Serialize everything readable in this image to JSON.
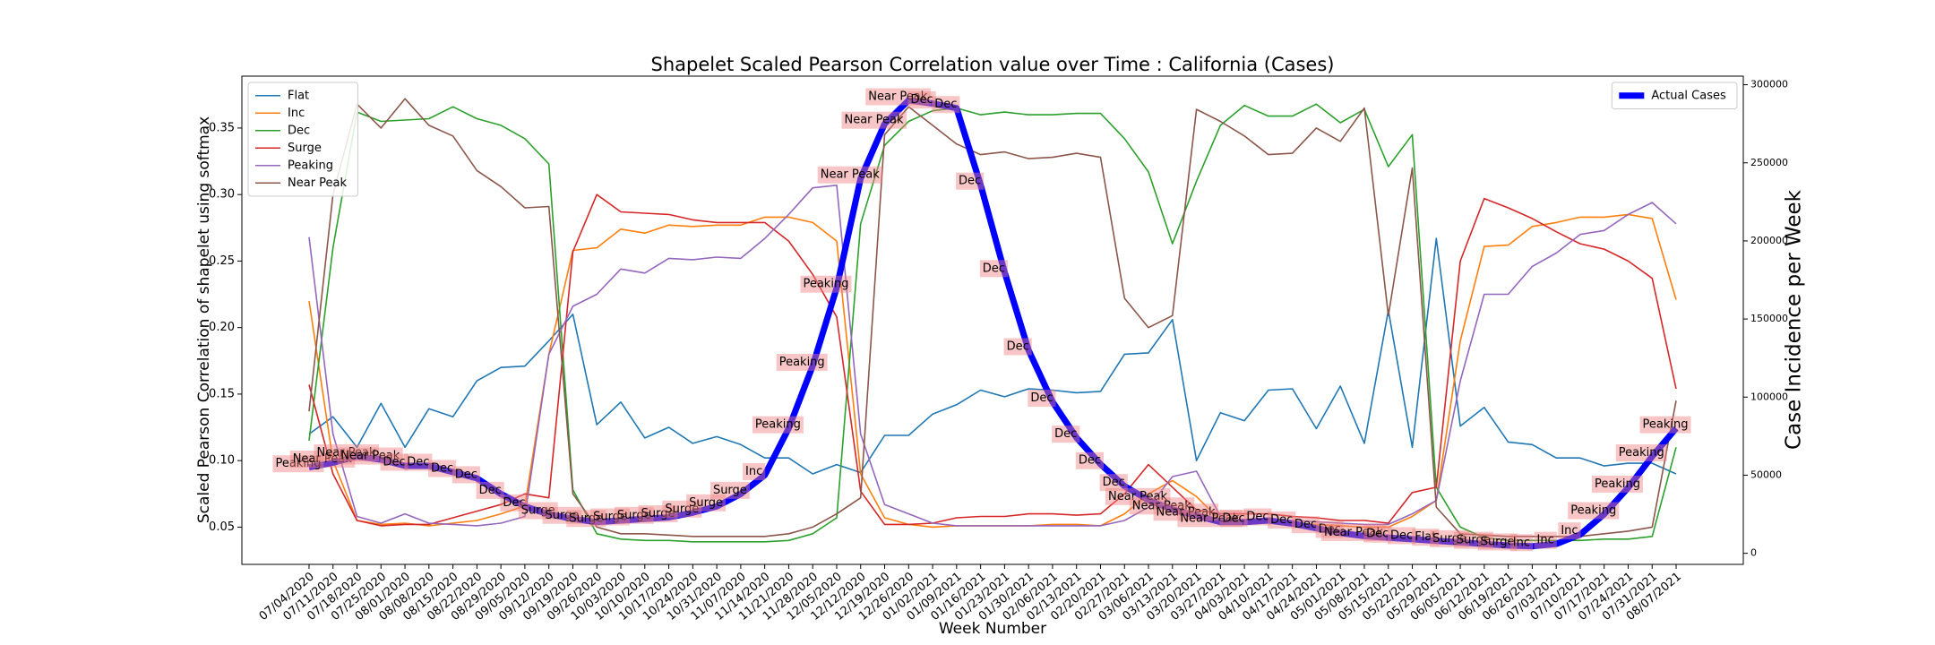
{
  "chart_data": {
    "type": "line",
    "title": "Shapelet Scaled Pearson Correlation value over Time : California (Cases)",
    "xlabel": "Week Number",
    "ylabel": "Scaled Pearson Correlation of shapelet using softmax",
    "y2label": "Case Incidence per Week",
    "categories": [
      "07/04/2020",
      "07/11/2020",
      "07/18/2020",
      "07/25/2020",
      "08/01/2020",
      "08/08/2020",
      "08/15/2020",
      "08/22/2020",
      "08/29/2020",
      "09/05/2020",
      "09/12/2020",
      "09/19/2020",
      "09/26/2020",
      "10/03/2020",
      "10/10/2020",
      "10/17/2020",
      "10/24/2020",
      "10/31/2020",
      "11/07/2020",
      "11/14/2020",
      "11/21/2020",
      "11/28/2020",
      "12/05/2020",
      "12/12/2020",
      "12/19/2020",
      "12/26/2020",
      "01/02/2021",
      "01/09/2021",
      "01/16/2021",
      "01/23/2021",
      "01/30/2021",
      "02/06/2021",
      "02/13/2021",
      "02/20/2021",
      "02/27/2021",
      "03/06/2021",
      "03/13/2021",
      "03/20/2021",
      "03/27/2021",
      "04/03/2021",
      "04/10/2021",
      "04/17/2021",
      "04/24/2021",
      "05/01/2021",
      "05/08/2021",
      "05/15/2021",
      "05/22/2021",
      "05/29/2021",
      "06/05/2021",
      "06/12/2021",
      "06/19/2021",
      "06/26/2021",
      "07/03/2021",
      "07/10/2021",
      "07/17/2021",
      "07/24/2021",
      "07/31/2021",
      "08/07/2021"
    ],
    "series": [
      {
        "name": "Flat",
        "color": "#1f77b4",
        "values": [
          0.12,
          0.133,
          0.11,
          0.143,
          0.11,
          0.139,
          0.133,
          0.16,
          0.17,
          0.171,
          0.19,
          0.21,
          0.127,
          0.144,
          0.117,
          0.125,
          0.113,
          0.118,
          0.112,
          0.102,
          0.102,
          0.09,
          0.097,
          0.091,
          0.119,
          0.119,
          0.135,
          0.142,
          0.153,
          0.148,
          0.154,
          0.153,
          0.151,
          0.152,
          0.18,
          0.181,
          0.206,
          0.1,
          0.136,
          0.13,
          0.153,
          0.154,
          0.124,
          0.156,
          0.113,
          0.213,
          0.11,
          0.267,
          0.126,
          0.14,
          0.114,
          0.112,
          0.102,
          0.102,
          0.096,
          0.098,
          0.098,
          0.09
        ]
      },
      {
        "name": "Inc",
        "color": "#ff7f0e",
        "values": [
          0.22,
          0.1,
          0.055,
          0.052,
          0.053,
          0.051,
          0.053,
          0.055,
          0.06,
          0.066,
          0.18,
          0.258,
          0.26,
          0.274,
          0.271,
          0.277,
          0.276,
          0.277,
          0.277,
          0.283,
          0.283,
          0.279,
          0.265,
          0.09,
          0.057,
          0.052,
          0.05,
          0.051,
          0.051,
          0.051,
          0.051,
          0.052,
          0.052,
          0.051,
          0.06,
          0.075,
          0.085,
          0.073,
          0.055,
          0.055,
          0.054,
          0.053,
          0.052,
          0.051,
          0.05,
          0.05,
          0.058,
          0.07,
          0.19,
          0.261,
          0.262,
          0.276,
          0.279,
          0.283,
          0.283,
          0.285,
          0.282,
          0.221
        ]
      },
      {
        "name": "Dec",
        "color": "#2ca02c",
        "values": [
          0.115,
          0.26,
          0.362,
          0.355,
          0.356,
          0.357,
          0.366,
          0.357,
          0.352,
          0.342,
          0.323,
          0.078,
          0.045,
          0.041,
          0.04,
          0.04,
          0.039,
          0.039,
          0.039,
          0.039,
          0.04,
          0.045,
          0.057,
          0.278,
          0.337,
          0.355,
          0.363,
          0.365,
          0.36,
          0.362,
          0.36,
          0.36,
          0.361,
          0.361,
          0.342,
          0.317,
          0.263,
          0.31,
          0.352,
          0.367,
          0.359,
          0.359,
          0.368,
          0.354,
          0.364,
          0.321,
          0.345,
          0.08,
          0.05,
          0.042,
          0.04,
          0.04,
          0.04,
          0.04,
          0.041,
          0.041,
          0.043,
          0.11
        ]
      },
      {
        "name": "Surge",
        "color": "#d62728",
        "values": [
          0.157,
          0.09,
          0.055,
          0.051,
          0.052,
          0.052,
          0.057,
          0.062,
          0.067,
          0.075,
          0.072,
          0.257,
          0.3,
          0.287,
          0.286,
          0.285,
          0.281,
          0.279,
          0.279,
          0.279,
          0.265,
          0.24,
          0.208,
          0.077,
          0.052,
          0.052,
          0.053,
          0.057,
          0.058,
          0.058,
          0.06,
          0.06,
          0.059,
          0.06,
          0.075,
          0.097,
          0.08,
          0.063,
          0.06,
          0.06,
          0.06,
          0.058,
          0.057,
          0.055,
          0.055,
          0.053,
          0.076,
          0.08,
          0.25,
          0.297,
          0.29,
          0.282,
          0.272,
          0.263,
          0.259,
          0.25,
          0.237,
          0.154
        ]
      },
      {
        "name": "Peaking",
        "color": "#9467bd",
        "values": [
          0.268,
          0.12,
          0.058,
          0.053,
          0.06,
          0.053,
          0.052,
          0.051,
          0.053,
          0.058,
          0.18,
          0.216,
          0.225,
          0.244,
          0.241,
          0.252,
          0.251,
          0.253,
          0.252,
          0.267,
          0.285,
          0.305,
          0.307,
          0.12,
          0.067,
          0.06,
          0.053,
          0.051,
          0.051,
          0.051,
          0.051,
          0.051,
          0.051,
          0.051,
          0.055,
          0.065,
          0.088,
          0.092,
          0.058,
          0.055,
          0.055,
          0.055,
          0.054,
          0.053,
          0.052,
          0.052,
          0.06,
          0.07,
          0.16,
          0.225,
          0.225,
          0.246,
          0.256,
          0.27,
          0.273,
          0.285,
          0.294,
          0.278
        ]
      },
      {
        "name": "Near Peak",
        "color": "#8c564b",
        "values": [
          0.137,
          0.3,
          0.368,
          0.35,
          0.372,
          0.352,
          0.344,
          0.318,
          0.306,
          0.29,
          0.291,
          0.075,
          0.05,
          0.045,
          0.045,
          0.044,
          0.043,
          0.043,
          0.043,
          0.043,
          0.045,
          0.05,
          0.06,
          0.072,
          0.345,
          0.366,
          0.352,
          0.338,
          0.33,
          0.332,
          0.327,
          0.328,
          0.331,
          0.328,
          0.222,
          0.2,
          0.209,
          0.364,
          0.355,
          0.344,
          0.33,
          0.331,
          0.35,
          0.34,
          0.365,
          0.209,
          0.32,
          0.065,
          0.045,
          0.044,
          0.043,
          0.043,
          0.043,
          0.043,
          0.045,
          0.047,
          0.05,
          0.145
        ]
      },
      {
        "name": "Actual Cases",
        "color": "#0000ff",
        "axis": "y2",
        "values": [
          55000,
          58000,
          62000,
          60000,
          56000,
          56000,
          52000,
          48000,
          38000,
          30000,
          25000,
          22000,
          20000,
          21000,
          22000,
          23000,
          26000,
          30000,
          38000,
          50000,
          80000,
          120000,
          170000,
          240000,
          275000,
          290000,
          288000,
          285000,
          236000,
          180000,
          130000,
          97000,
          74000,
          57000,
          43000,
          34000,
          28000,
          24000,
          20000,
          20000,
          21000,
          19000,
          16000,
          13000,
          11000,
          10000,
          9000,
          8000,
          7000,
          6000,
          5000,
          4500,
          6000,
          12000,
          25000,
          42000,
          62000,
          80000
        ]
      }
    ],
    "annotations": [
      "Peaking",
      "Near Peak",
      "Near Peak",
      "Near Peak",
      "Dec",
      "Dec",
      "Dec",
      "Dec",
      "Dec",
      "Dec",
      "Surge",
      "Surge",
      "Surge",
      "Surge",
      "Surge",
      "Surge",
      "Surge",
      "Surge",
      "Surge",
      "Inc",
      "Peaking",
      "Peaking",
      "Peaking",
      "Near Peak",
      "Near Peak",
      "Near Peak",
      "Dec",
      "Dec",
      "Dec",
      "Dec",
      "Dec",
      "Dec",
      "Dec",
      "Dec",
      "Dec",
      "Near Peak",
      "Near Peak",
      "Near Peak",
      "Near Peak",
      "Dec",
      "Dec",
      "Dec",
      "Dec",
      "Dec",
      "Near Peak",
      "Dec",
      "Dec",
      "Flat",
      "Surge",
      "Surge",
      "Surge",
      "Inc",
      "Inc",
      "Inc",
      "Peaking",
      "Peaking",
      "Peaking",
      "Peaking"
    ],
    "ylim": [
      0.022,
      0.389
    ],
    "yticks": [
      0.05,
      {
        "value": 0.1,
        "label": "0.10"
      },
      0.15,
      {
        "value": 0.2,
        "label": "0.20"
      },
      0.25,
      {
        "value": 0.3,
        "label": "0.30"
      },
      0.35
    ],
    "y2lim": [
      -7100,
      305500
    ],
    "y2ticks": [
      0,
      50000,
      100000,
      150000,
      200000,
      250000,
      300000
    ],
    "legend": "upper left",
    "y2_legend": "upper right"
  }
}
